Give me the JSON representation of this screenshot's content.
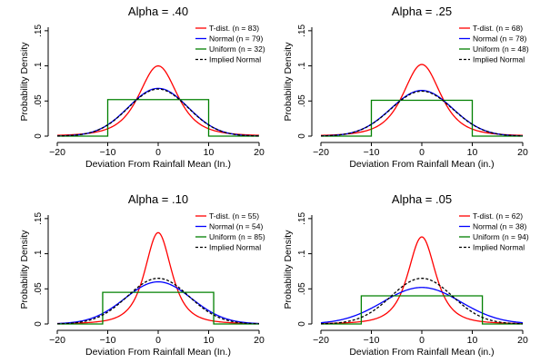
{
  "chart_data": [
    {
      "type": "line",
      "title": "Alpha = .40",
      "xlabel": "Deviation From Rainfall Mean (In.)",
      "ylabel": "Probability Density",
      "xlim": [
        -20,
        20
      ],
      "ylim": [
        0,
        0.155
      ],
      "x_ticks": [
        -20,
        -10,
        0,
        10,
        20
      ],
      "x_tick_labels": [
        "−20",
        "−10",
        "0",
        "10",
        "20"
      ],
      "y_ticks": [
        0,
        0.05,
        0.1,
        0.15
      ],
      "y_tick_labels": [
        "0",
        ".05",
        ".1",
        ".15"
      ],
      "legend_position": "top-right",
      "grid": false,
      "series": [
        {
          "name": "T-dist. (n = 83)",
          "color": "#ff0000",
          "style": "solid",
          "kind": "t",
          "scale": 4.0,
          "df": 3,
          "peak": 0.1
        },
        {
          "name": "Normal (n = 79)",
          "color": "#0000ff",
          "style": "solid",
          "kind": "normal",
          "mean": 0,
          "sd": 5.9,
          "peak": 0.068
        },
        {
          "name": "Uniform (n = 32)",
          "color": "#008000",
          "style": "solid",
          "kind": "uniform",
          "low": -10,
          "high": 10,
          "height": 0.052
        },
        {
          "name": "Implied Normal",
          "color": "#000000",
          "style": "dashed",
          "kind": "normal",
          "mean": 0,
          "sd": 5.9,
          "peak": 0.067
        }
      ]
    },
    {
      "type": "line",
      "title": "Alpha = .25",
      "xlabel": "Deviation From Rainfall Mean (in.)",
      "ylabel": "Probability Density",
      "xlim": [
        -20,
        20
      ],
      "ylim": [
        0,
        0.155
      ],
      "x_ticks": [
        -20,
        -10,
        0,
        10,
        20
      ],
      "x_tick_labels": [
        "−20",
        "−10",
        "0",
        "10",
        "20"
      ],
      "y_ticks": [
        0,
        0.05,
        0.1,
        0.15
      ],
      "y_tick_labels": [
        "0",
        ".05",
        ".1",
        ".15"
      ],
      "legend_position": "top-right",
      "grid": false,
      "series": [
        {
          "name": "T-dist. (n = 68)",
          "color": "#ff0000",
          "style": "solid",
          "kind": "t",
          "scale": 3.9,
          "df": 3,
          "peak": 0.102
        },
        {
          "name": "Normal (n = 78)",
          "color": "#0000ff",
          "style": "solid",
          "kind": "normal",
          "mean": 0,
          "sd": 6.1,
          "peak": 0.065
        },
        {
          "name": "Uniform (n = 48)",
          "color": "#008000",
          "style": "solid",
          "kind": "uniform",
          "low": -10,
          "high": 10,
          "height": 0.051
        },
        {
          "name": "Implied Normal",
          "color": "#000000",
          "style": "dashed",
          "kind": "normal",
          "mean": 0,
          "sd": 6.1,
          "peak": 0.064
        }
      ]
    },
    {
      "type": "line",
      "title": "Alpha = .10",
      "xlabel": "Deviation From Rainfall Mean (In.)",
      "ylabel": "Probability Density",
      "xlim": [
        -20,
        20
      ],
      "ylim": [
        0,
        0.155
      ],
      "x_ticks": [
        -20,
        -10,
        0,
        10,
        20
      ],
      "x_tick_labels": [
        "−20",
        "−10",
        "0",
        "10",
        "20"
      ],
      "y_ticks": [
        0,
        0.05,
        0.1,
        0.15
      ],
      "y_tick_labels": [
        "0",
        ".05",
        ".1",
        ".15"
      ],
      "legend_position": "top-right",
      "grid": false,
      "series": [
        {
          "name": "T-dist. (n = 55)",
          "color": "#ff0000",
          "style": "solid",
          "kind": "t",
          "scale": 2.8,
          "df": 2.5,
          "peak": 0.13
        },
        {
          "name": "Normal (n = 54)",
          "color": "#0000ff",
          "style": "solid",
          "kind": "normal",
          "mean": 0,
          "sd": 6.6,
          "peak": 0.06
        },
        {
          "name": "Uniform (n = 85)",
          "color": "#008000",
          "style": "solid",
          "kind": "uniform",
          "low": -11,
          "high": 11,
          "height": 0.045
        },
        {
          "name": "Implied Normal",
          "color": "#000000",
          "style": "dashed",
          "kind": "normal",
          "mean": 0,
          "sd": 6.1,
          "peak": 0.065
        }
      ]
    },
    {
      "type": "line",
      "title": "Alpha = .05",
      "xlabel": "Deviation From Rainfall Mean (in.)",
      "ylabel": "Probability Density",
      "xlim": [
        -20,
        20
      ],
      "ylim": [
        0,
        0.155
      ],
      "x_ticks": [
        -20,
        -10,
        0,
        10,
        20
      ],
      "x_tick_labels": [
        "−20",
        "−10",
        "0",
        "10",
        "20"
      ],
      "y_ticks": [
        0,
        0.05,
        0.1,
        0.15
      ],
      "y_tick_labels": [
        "0",
        ".05",
        ".1",
        ".15"
      ],
      "legend_position": "top-right",
      "grid": false,
      "series": [
        {
          "name": "T-dist. (n = 62)",
          "color": "#ff0000",
          "style": "solid",
          "kind": "t",
          "scale": 2.9,
          "df": 2.5,
          "peak": 0.124
        },
        {
          "name": "Normal (n = 38)",
          "color": "#0000ff",
          "style": "solid",
          "kind": "normal",
          "mean": 0,
          "sd": 7.7,
          "peak": 0.052
        },
        {
          "name": "Uniform (n = 94)",
          "color": "#008000",
          "style": "solid",
          "kind": "uniform",
          "low": -12,
          "high": 12,
          "height": 0.04
        },
        {
          "name": "Implied Normal",
          "color": "#000000",
          "style": "dashed",
          "kind": "normal",
          "mean": 0,
          "sd": 6.1,
          "peak": 0.065
        }
      ]
    }
  ]
}
